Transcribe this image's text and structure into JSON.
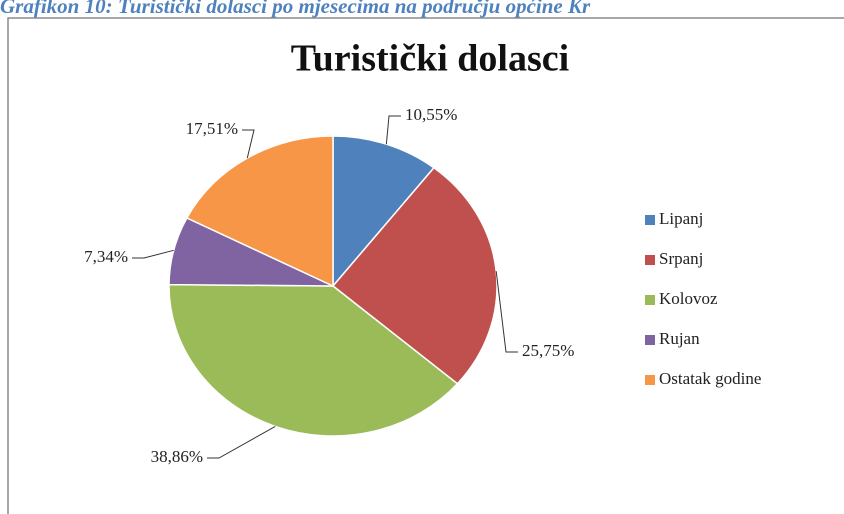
{
  "caption": "Grafikon 10: Turistički dolasci po mjesecima na području općine Kr",
  "chart_data": {
    "type": "pie",
    "title": "Turistički dolasci",
    "categories": [
      "Lipanj",
      "Srpanj",
      "Kolovoz",
      "Rujan",
      "Ostatak godine"
    ],
    "values": [
      10.55,
      25.75,
      38.86,
      7.34,
      17.51
    ],
    "value_labels": [
      "10,55%",
      "25,75%",
      "38,86%",
      "7,34%",
      "17,51%"
    ],
    "colors": [
      "#4f81bd",
      "#c0504d",
      "#9bbb59",
      "#8064a2",
      "#f79646"
    ],
    "legend": "right"
  }
}
